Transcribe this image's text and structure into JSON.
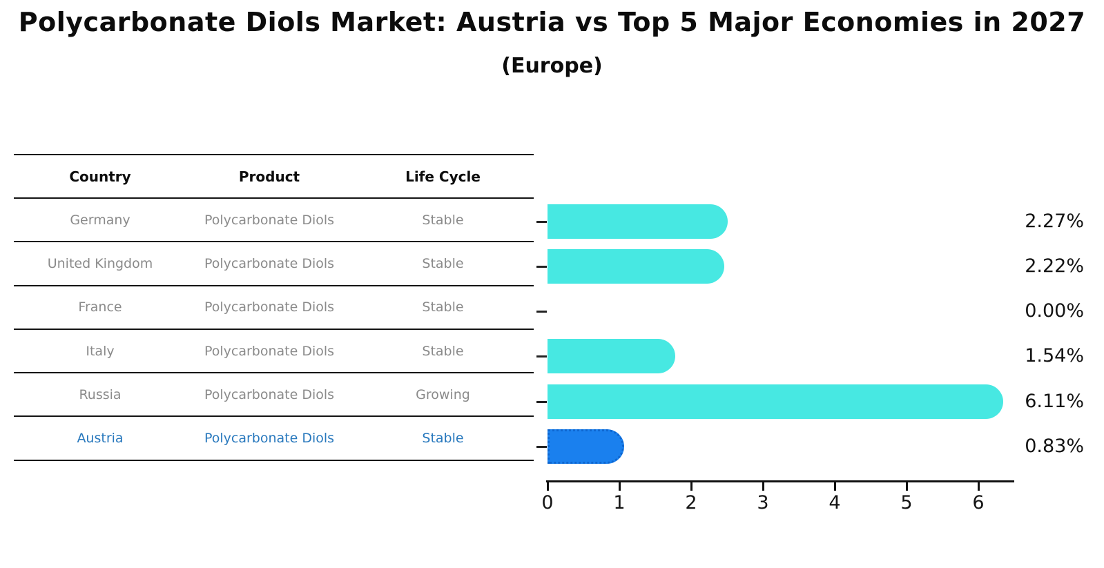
{
  "title": "Polycarbonate Diols Market: Austria vs Top 5 Major Economies in 2027",
  "subtitle": "(Europe)",
  "table": {
    "headers": [
      "Country",
      "Product",
      "Life Cycle"
    ],
    "rows": [
      {
        "country": "Germany",
        "product": "Polycarbonate Diols",
        "life_cycle": "Stable",
        "value_label": "2.27%"
      },
      {
        "country": "United Kingdom",
        "product": "Polycarbonate Diols",
        "life_cycle": "Stable",
        "value_label": "2.22%"
      },
      {
        "country": "France",
        "product": "Polycarbonate Diols",
        "life_cycle": "Stable",
        "value_label": "0.00%"
      },
      {
        "country": "Italy",
        "product": "Polycarbonate Diols",
        "life_cycle": "Stable",
        "value_label": "1.54%"
      },
      {
        "country": "Russia",
        "product": "Polycarbonate Diols",
        "life_cycle": "Growing",
        "value_label": "6.11%"
      },
      {
        "country": "Austria",
        "product": "Polycarbonate Diols",
        "life_cycle": "Stable",
        "value_label": "0.83%"
      }
    ]
  },
  "chart_data": {
    "type": "bar",
    "orientation": "horizontal",
    "title": "Polycarbonate Diols Market: Austria vs Top 5 Major Economies in 2027",
    "subtitle": "(Europe)",
    "categories": [
      "Germany",
      "United Kingdom",
      "France",
      "Italy",
      "Russia",
      "Austria"
    ],
    "values": [
      2.27,
      2.22,
      0.0,
      1.54,
      6.11,
      0.83
    ],
    "value_labels": [
      "2.27%",
      "2.22%",
      "0.00%",
      "1.54%",
      "6.11%",
      "0.83%"
    ],
    "xlabel": "",
    "ylabel": "",
    "xlim": [
      0,
      6.5
    ],
    "xticks": [
      0,
      1,
      2,
      3,
      4,
      5,
      6
    ],
    "grid": false,
    "legend": "none",
    "bar_style": "rounded-right-cap",
    "highlight_index": 5
  },
  "colors": {
    "bar_cyan": "#47e8e2",
    "bar_blue": "#1a80ee",
    "bar_blue_border": "#0d66d0",
    "austria_text": "#2878bd",
    "row_text": "#8a8a8a",
    "header_text": "#0d0d0d",
    "axis": "#111111"
  }
}
